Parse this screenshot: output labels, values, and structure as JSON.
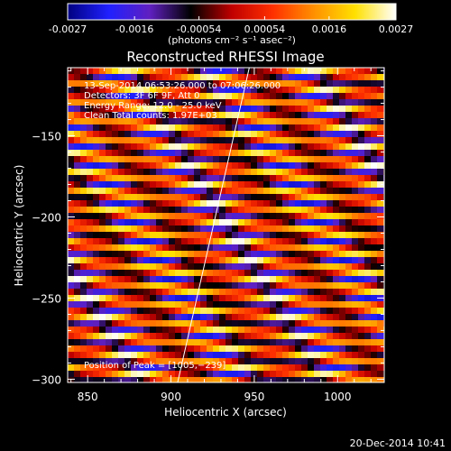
{
  "colorbar": {
    "ticks": [
      "-0.0027",
      "-0.0016",
      "-0.00054",
      "0.00054",
      "0.0016",
      "0.0027"
    ],
    "tick_values": [
      -0.0027,
      -0.0016,
      -0.00054,
      0.00054,
      0.0016,
      0.0027
    ],
    "range": [
      -0.0027,
      0.0027
    ],
    "unit_label": "(photons cm⁻² s⁻¹ asec⁻²)",
    "stops": [
      "#000080",
      "#2020ff",
      "#6020c0",
      "#000000",
      "#c00000",
      "#ff3000",
      "#ff9000",
      "#ffe000",
      "#ffffff"
    ]
  },
  "chart_data": {
    "type": "heatmap",
    "title": "Reconstructed RHESSI Image",
    "xlabel": "Heliocentric X (arcsec)",
    "ylabel": "Heliocentric Y (arcsec)",
    "xlim": [
      838,
      1028
    ],
    "ylim": [
      -302,
      -108
    ],
    "xticks": [
      850,
      900,
      950,
      1000
    ],
    "yticks": [
      -150,
      -200,
      -250,
      -300
    ],
    "xtick_labels": [
      "850",
      "900",
      "950",
      "1000"
    ],
    "ytick_labels": [
      "−150",
      "−200",
      "−250",
      "−300"
    ],
    "annotations": [
      "13-Sep-2014 06:53:26.000 to 07:06:26.000",
      "Detectors: 3F 6F 9F, Att 0",
      "Energy Range: 12.0 - 25.0 keV",
      "Clean     Total counts: 1.97E+03"
    ],
    "peak_label": "Position of Peak = [1005,−239]",
    "peak": [
      1005,
      -239
    ],
    "limb_line": [
      [
        904,
        -302
      ],
      [
        947,
        -108
      ]
    ],
    "pattern": {
      "description": "diagonal stripe fringes",
      "bands_period_arcsec": 11,
      "slope": -0.1
    }
  },
  "footer": {
    "timestamp": "20-Dec-2014 10:41"
  }
}
